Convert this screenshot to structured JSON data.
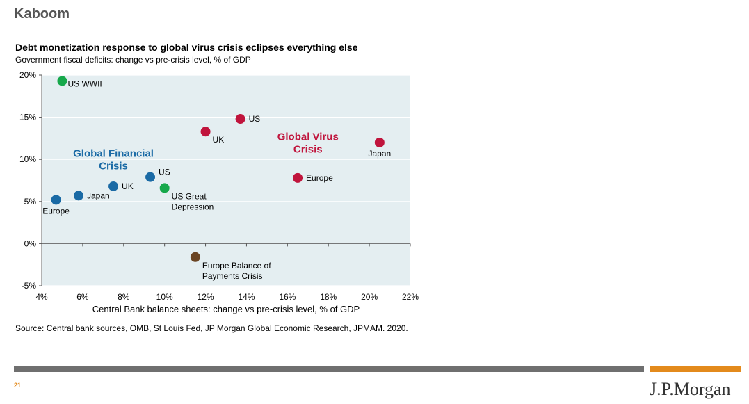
{
  "page": {
    "title": "Kaboom",
    "source": "Source: Central bank sources, OMB, St Louis Fed, JP Morgan Global Economic Research, JPMAM. 2020.",
    "page_number": "21",
    "logo": "J.P.Morgan"
  },
  "colors": {
    "plot_background": "#e4eef1",
    "gfc": "#1a6aa5",
    "virus": "#c0143c",
    "historic": "#16a84b",
    "bop": "#6a4423"
  },
  "chart_data": {
    "type": "scatter",
    "title": "Debt monetization response to global virus crisis eclipses everything else",
    "subtitle": "Government fiscal deficits: change vs pre-crisis level, % of GDP",
    "xlabel": "Central Bank balance sheets: change vs pre-crisis level, % of GDP",
    "ylabel": "",
    "xlim": [
      4,
      22
    ],
    "ylim": [
      -5,
      20
    ],
    "x_ticks": [
      4,
      6,
      8,
      10,
      12,
      14,
      16,
      18,
      20,
      22
    ],
    "x_tick_labels": [
      "4%",
      "6%",
      "8%",
      "10%",
      "12%",
      "14%",
      "16%",
      "18%",
      "20%",
      "22%"
    ],
    "y_ticks": [
      -5,
      0,
      5,
      10,
      15,
      20
    ],
    "y_tick_labels": [
      "-5%",
      "0%",
      "5%",
      "10%",
      "15%",
      "20%"
    ],
    "grid": true,
    "group_labels": [
      {
        "lines": [
          "Global Financial",
          "Crisis"
        ],
        "x": 7.5,
        "y": 10.3,
        "group": "gfc"
      },
      {
        "lines": [
          "Global Virus",
          "Crisis"
        ],
        "x": 17.0,
        "y": 12.3,
        "group": "virus"
      }
    ],
    "points": [
      {
        "group": "historic",
        "label": [
          "US WWII"
        ],
        "x": 5.0,
        "y": 19.3,
        "label_pos": "right-low"
      },
      {
        "group": "historic",
        "label": [
          "US Great",
          "Depression"
        ],
        "x": 10.0,
        "y": 6.6,
        "label_pos": "below-right"
      },
      {
        "group": "gfc",
        "label": [
          "US"
        ],
        "x": 9.3,
        "y": 7.9,
        "label_pos": "right-high"
      },
      {
        "group": "gfc",
        "label": [
          "UK"
        ],
        "x": 7.5,
        "y": 6.8,
        "label_pos": "right"
      },
      {
        "group": "gfc",
        "label": [
          "Japan"
        ],
        "x": 5.8,
        "y": 5.7,
        "label_pos": "right"
      },
      {
        "group": "gfc",
        "label": [
          "Europe"
        ],
        "x": 4.7,
        "y": 5.2,
        "label_pos": "below"
      },
      {
        "group": "virus",
        "label": [
          "US"
        ],
        "x": 13.7,
        "y": 14.8,
        "label_pos": "right"
      },
      {
        "group": "virus",
        "label": [
          "UK"
        ],
        "x": 12.0,
        "y": 13.3,
        "label_pos": "below-right"
      },
      {
        "group": "virus",
        "label": [
          "Japan"
        ],
        "x": 20.5,
        "y": 12.0,
        "label_pos": "below"
      },
      {
        "group": "virus",
        "label": [
          "Europe"
        ],
        "x": 16.5,
        "y": 7.8,
        "label_pos": "right"
      },
      {
        "group": "bop",
        "label": [
          "Europe Balance of",
          "Payments Crisis"
        ],
        "x": 11.5,
        "y": -1.6,
        "label_pos": "below-right"
      }
    ]
  }
}
